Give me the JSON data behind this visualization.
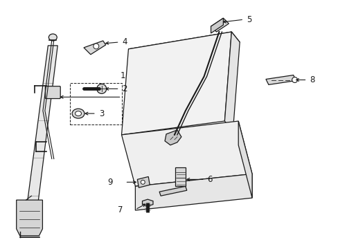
{
  "background_color": "#ffffff",
  "line_color": "#1a1a1a",
  "fig_width": 4.89,
  "fig_height": 3.6,
  "dpi": 100,
  "label_fontsize": 8.5,
  "lw": 0.9,
  "seat_fill": "#f0f0f0",
  "part_fill": "#e0e0e0"
}
